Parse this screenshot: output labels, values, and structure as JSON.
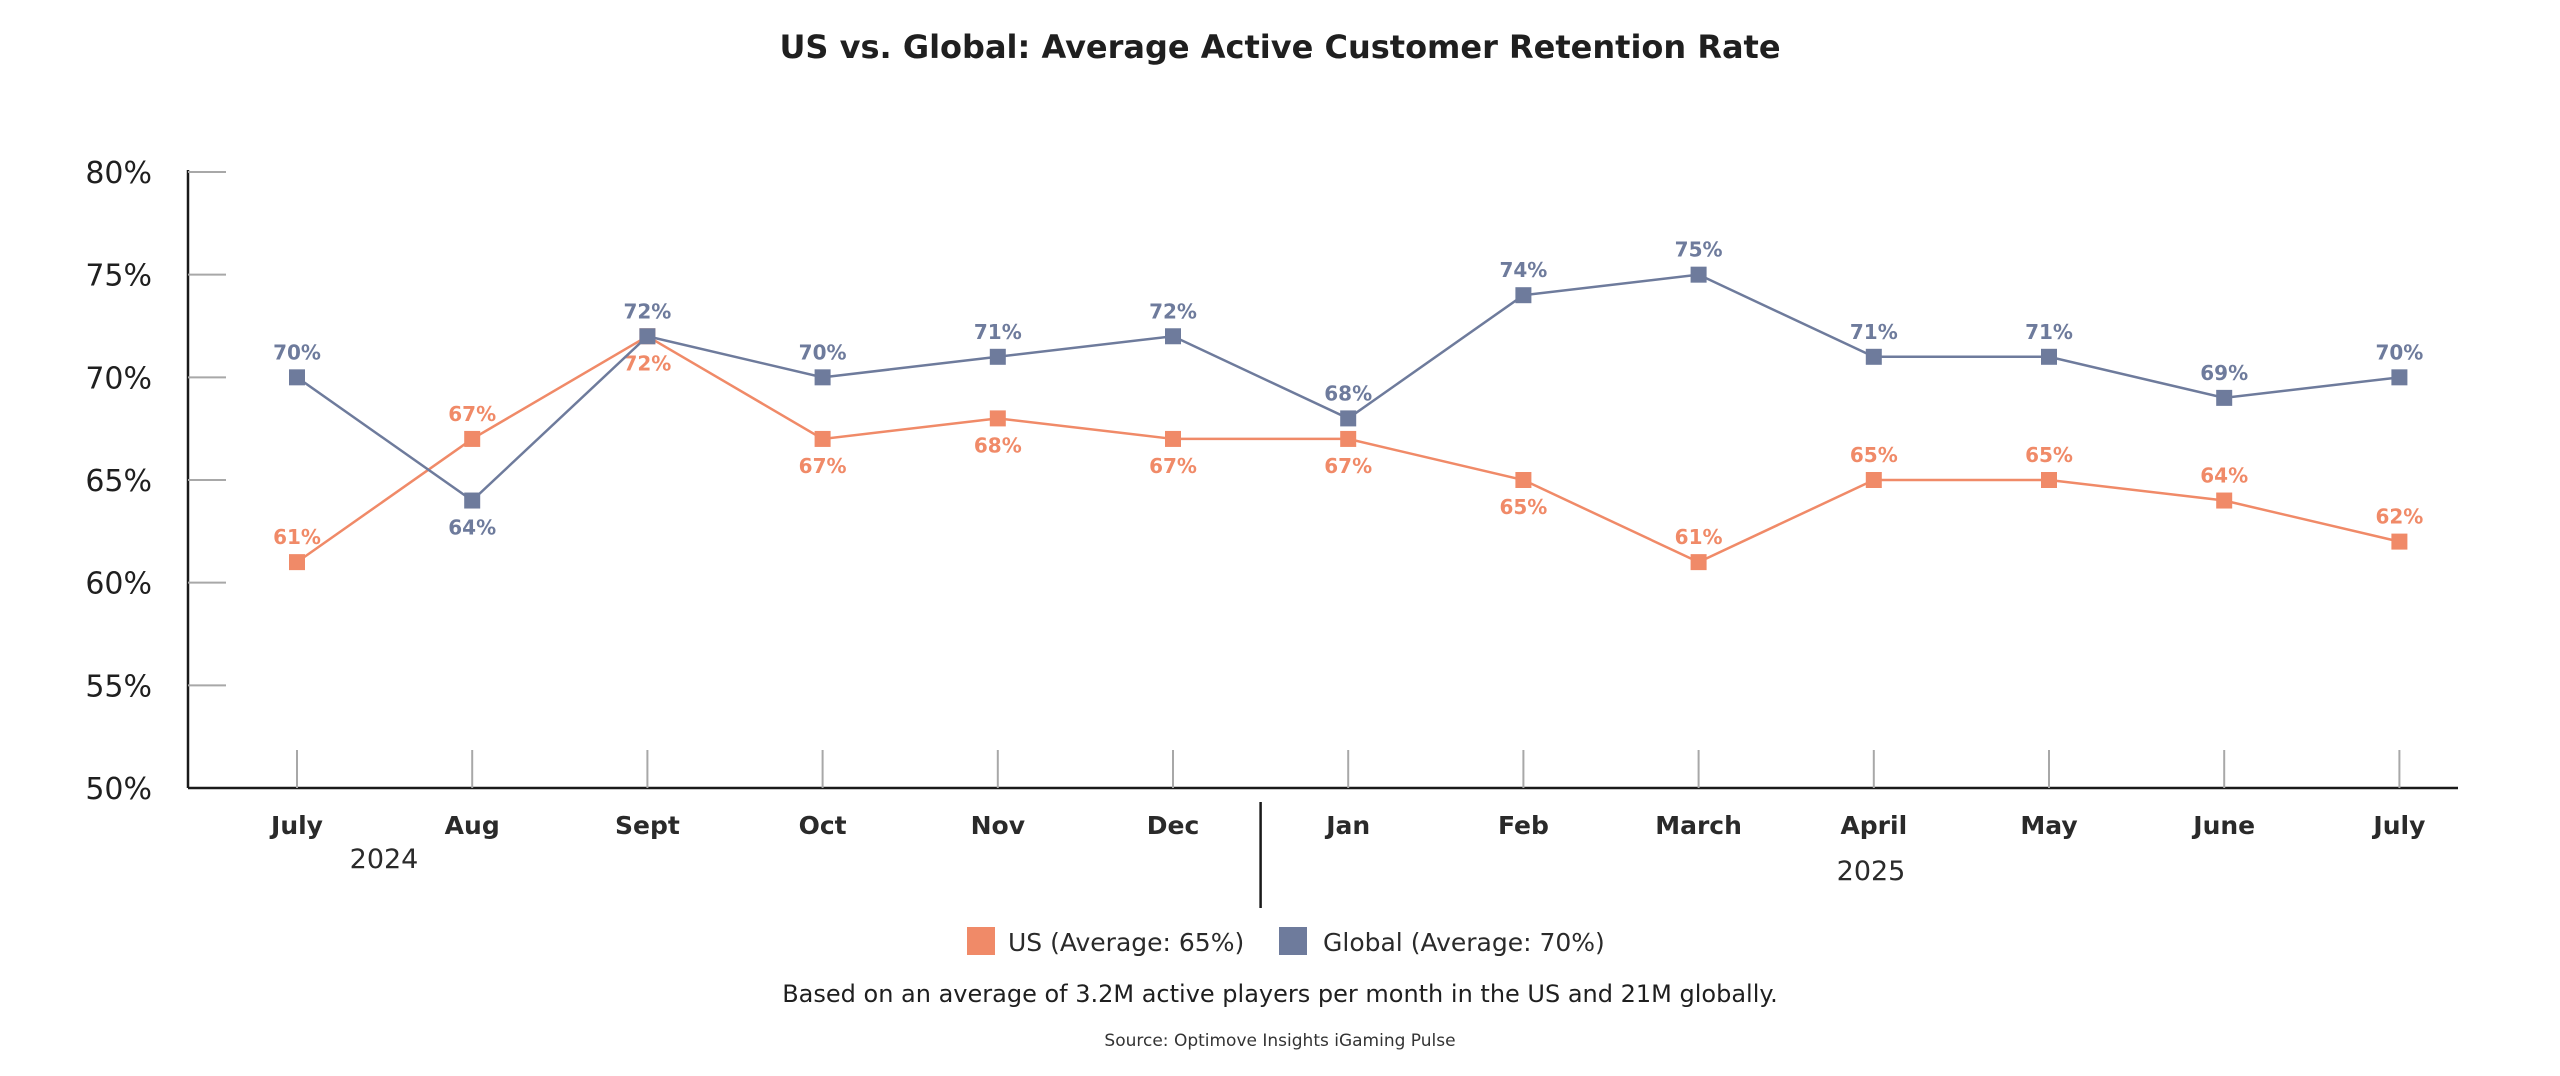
{
  "chart_data": {
    "type": "line",
    "title": "US vs. Global: Average Active Customer Retention Rate",
    "categories": [
      "July",
      "Aug",
      "Sept",
      "Oct",
      "Nov",
      "Dec",
      "Jan",
      "Feb",
      "March",
      "April",
      "May",
      "June",
      "July"
    ],
    "years": [
      {
        "label": "2024",
        "start_index": 0,
        "end_index": 5
      },
      {
        "label": "2025",
        "start_index": 6,
        "end_index": 12
      }
    ],
    "series": [
      {
        "name": "US",
        "legend": "US (Average: 65%)",
        "color": "#f08a68",
        "label_color": "#f08a68",
        "values": [
          61,
          67,
          72,
          67,
          68,
          67,
          67,
          65,
          61,
          65,
          65,
          64,
          62
        ],
        "label_pos": [
          "above",
          "above",
          "below",
          "below",
          "below",
          "below",
          "below",
          "below",
          "above",
          "above",
          "above",
          "above",
          "above"
        ]
      },
      {
        "name": "Global",
        "legend": "Global (Average: 70%)",
        "color": "#6e7b9c",
        "label_color": "#6e7b9c",
        "values": [
          70,
          64,
          72,
          70,
          71,
          72,
          68,
          74,
          75,
          71,
          71,
          69,
          70
        ],
        "label_pos": [
          "above",
          "below",
          "above",
          "above",
          "above",
          "above",
          "above",
          "above",
          "above",
          "above",
          "above",
          "above",
          "above"
        ]
      }
    ],
    "ylim": [
      50,
      80
    ],
    "yticks": [
      50,
      55,
      60,
      65,
      70,
      75,
      80
    ],
    "ytick_suffix": "%",
    "xlabel": "",
    "ylabel": "",
    "grid": false,
    "legend_position": "bottom-center"
  },
  "footnote": "Based on an average of 3.2M active players per month in the US and 21M globally.",
  "source": "Source: Optimove Insights iGaming Pulse"
}
